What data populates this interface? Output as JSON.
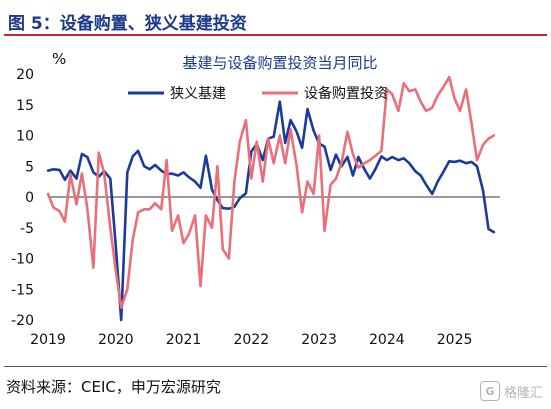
{
  "figure": {
    "title": "图 5：设备购置、狭义基建投资",
    "source": "资料来源：CEIC，申万宏源研究",
    "watermark": "格隆汇"
  },
  "colors": {
    "series1": "#1b3a9a",
    "series2": "#e8707a",
    "title": "#1b3a8c",
    "rule": "#c62828"
  },
  "chart_data": {
    "type": "line",
    "title": "基建与设备购置投资当月同比",
    "ylabel": "%",
    "ylim": [
      -20,
      20
    ],
    "yticks": [
      20,
      15,
      10,
      5,
      0,
      -5,
      -10,
      -15,
      -20
    ],
    "xlim": [
      2019.0,
      2025.67
    ],
    "xticks": [
      2019,
      2020,
      2021,
      2022,
      2023,
      2024,
      2025
    ],
    "legend": "top",
    "series": [
      {
        "name": "狭义基建",
        "color": "#1b3a9a",
        "x": [
          2019.0,
          2019.08,
          2019.17,
          2019.25,
          2019.33,
          2019.42,
          2019.5,
          2019.58,
          2019.67,
          2019.75,
          2019.83,
          2019.92,
          2020.0,
          2020.08,
          2020.17,
          2020.25,
          2020.33,
          2020.42,
          2020.5,
          2020.58,
          2020.67,
          2020.75,
          2020.83,
          2020.92,
          2021.0,
          2021.08,
          2021.17,
          2021.25,
          2021.33,
          2021.42,
          2021.5,
          2021.58,
          2021.67,
          2021.75,
          2021.83,
          2021.92,
          2022.0,
          2022.08,
          2022.17,
          2022.25,
          2022.33,
          2022.42,
          2022.5,
          2022.58,
          2022.67,
          2022.75,
          2022.83,
          2022.92,
          2023.0,
          2023.08,
          2023.17,
          2023.25,
          2023.33,
          2023.42,
          2023.5,
          2023.58,
          2023.67,
          2023.75,
          2023.83,
          2023.92,
          2024.0,
          2024.08,
          2024.17,
          2024.25,
          2024.33,
          2024.42,
          2024.5,
          2024.58,
          2024.67,
          2024.75,
          2024.83,
          2024.92,
          2025.0,
          2025.08,
          2025.17,
          2025.25,
          2025.33,
          2025.42,
          2025.5,
          2025.58
        ],
        "values": [
          4.3,
          4.5,
          4.4,
          2.8,
          4.3,
          3.0,
          7.0,
          6.5,
          4.0,
          3.3,
          4.2,
          3.0,
          -8.0,
          -20.0,
          4.0,
          6.6,
          7.5,
          5.0,
          4.5,
          5.2,
          4.3,
          3.7,
          3.8,
          3.5,
          4.0,
          3.2,
          2.5,
          1.5,
          6.7,
          1.2,
          -0.5,
          -1.8,
          -1.9,
          -1.6,
          -0.2,
          0.6,
          7.4,
          8.6,
          6.0,
          9.5,
          9.8,
          15.5,
          8.8,
          12.5,
          10.6,
          8.0,
          14.3,
          10.8,
          8.7,
          8.2,
          4.4,
          6.9,
          5.0,
          6.5,
          3.5,
          6.5,
          4.5,
          3.0,
          4.5,
          6.6,
          6.0,
          6.5,
          6.0,
          6.3,
          5.5,
          4.2,
          3.5,
          2.0,
          0.5,
          2.5,
          4.0,
          5.8,
          5.7,
          5.9,
          5.5,
          5.7,
          5.0,
          1.0,
          -5.2,
          -5.7
        ]
      },
      {
        "name": "设备购置投资",
        "color": "#e8707a",
        "x": [
          2019.0,
          2019.08,
          2019.17,
          2019.25,
          2019.33,
          2019.42,
          2019.5,
          2019.58,
          2019.67,
          2019.75,
          2019.83,
          2019.92,
          2020.0,
          2020.08,
          2020.17,
          2020.25,
          2020.33,
          2020.42,
          2020.5,
          2020.58,
          2020.67,
          2020.75,
          2020.83,
          2020.92,
          2021.0,
          2021.08,
          2021.17,
          2021.25,
          2021.33,
          2021.42,
          2021.5,
          2021.58,
          2021.67,
          2021.75,
          2021.83,
          2021.92,
          2022.0,
          2022.08,
          2022.17,
          2022.25,
          2022.33,
          2022.42,
          2022.5,
          2022.58,
          2022.67,
          2022.75,
          2022.83,
          2022.92,
          2023.0,
          2023.08,
          2023.17,
          2023.25,
          2023.33,
          2023.42,
          2023.5,
          2023.58,
          2023.67,
          2023.75,
          2023.83,
          2023.92,
          2024.0,
          2024.08,
          2024.17,
          2024.25,
          2024.33,
          2024.42,
          2024.5,
          2024.58,
          2024.67,
          2024.75,
          2024.83,
          2024.92,
          2025.0,
          2025.08,
          2025.17,
          2025.25,
          2025.33,
          2025.42,
          2025.5,
          2025.58
        ],
        "values": [
          0.5,
          -1.7,
          -2.3,
          -4.0,
          3.7,
          -1.2,
          3.8,
          -1.8,
          -11.5,
          7.2,
          3.8,
          -5.0,
          -12.0,
          -18.0,
          -15.0,
          -7.0,
          -2.5,
          -2.0,
          -2.0,
          -1.0,
          -2.0,
          6.0,
          -5.5,
          -3.0,
          -7.5,
          -6.0,
          -3.0,
          -14.5,
          -3.0,
          -5.0,
          5.0,
          -8.5,
          -10.0,
          2.5,
          9.0,
          12.5,
          3.0,
          9.0,
          2.5,
          9.5,
          5.5,
          10.0,
          5.5,
          11.0,
          5.0,
          -2.5,
          2.5,
          0.5,
          10.0,
          -5.5,
          2.0,
          3.0,
          5.5,
          10.6,
          7.0,
          4.8,
          5.5,
          6.0,
          6.7,
          7.5,
          17.5,
          16.7,
          14.0,
          18.5,
          17.2,
          17.5,
          15.5,
          14.0,
          14.5,
          16.5,
          17.8,
          19.5,
          16.0,
          14.0,
          17.5,
          12.0,
          6.0,
          8.5,
          9.5,
          10.0
        ]
      }
    ]
  }
}
